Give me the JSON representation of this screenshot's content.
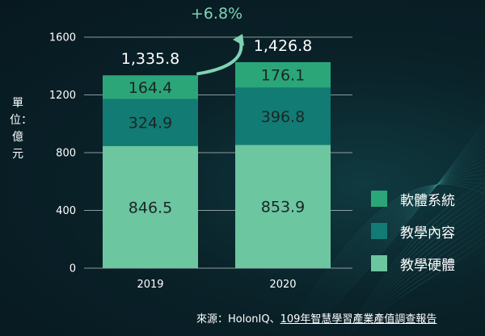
{
  "chart_data": {
    "type": "bar",
    "stacked": true,
    "categories": [
      "2019",
      "2020"
    ],
    "series": [
      {
        "name": "教學硬體",
        "values": [
          846.5,
          853.9
        ],
        "color": "#6cc6a0"
      },
      {
        "name": "教學內容",
        "values": [
          324.9,
          396.8
        ],
        "color": "#127b73"
      },
      {
        "name": "軟體系統",
        "values": [
          164.4,
          176.1
        ],
        "color": "#2ba679"
      }
    ],
    "totals": [
      "1,335.8",
      "1,426.8"
    ],
    "segment_labels": [
      [
        "846.5",
        "324.9",
        "164.4"
      ],
      [
        "853.9",
        "396.8",
        "176.1"
      ]
    ],
    "growth_label": "+6.8%",
    "ylabel": "單位：億元",
    "ylim": [
      0,
      1600
    ],
    "yticks": [
      0,
      400,
      800,
      1200,
      1600
    ],
    "grid": true,
    "legend_position": "right",
    "colors": {
      "arrow": "#7fd3b4",
      "grid": "#b9c3c6",
      "text": "#ffffff"
    }
  },
  "legend": [
    {
      "label": "軟體系統",
      "color": "#2ba679"
    },
    {
      "label": "教學內容",
      "color": "#127b73"
    },
    {
      "label": "教學硬體",
      "color": "#6cc6a0"
    }
  ],
  "source": {
    "prefix": "來源：HolonIQ、",
    "link": "109年智慧學習產業產值調查報告"
  }
}
